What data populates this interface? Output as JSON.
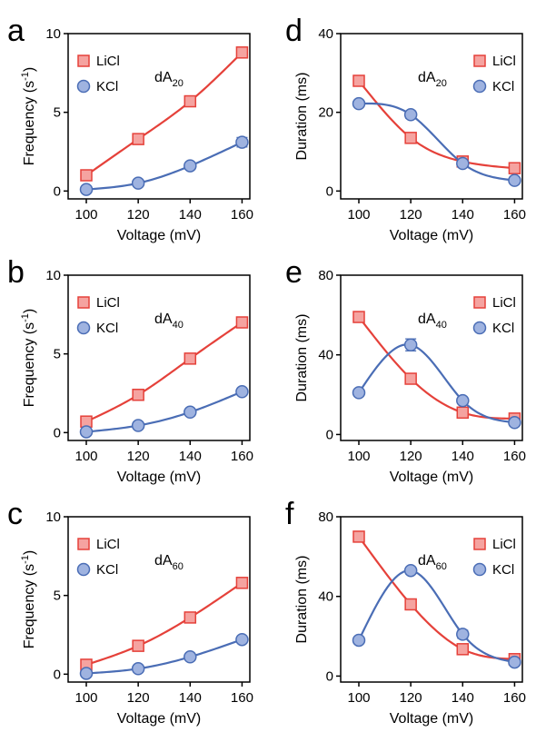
{
  "figure": {
    "panels": [
      "a",
      "b",
      "c",
      "d",
      "e",
      "f"
    ],
    "colors": {
      "LiCl": "#e5413a",
      "KCl": "#4a6db5",
      "LiCl_fill": "#f5a3a0",
      "KCl_fill": "#9fb3e0"
    }
  },
  "chart_data": [
    {
      "panel": "a",
      "type": "line",
      "annotation": {
        "base": "dA",
        "sub": "20"
      },
      "xlabel": "Voltage (mV)",
      "ylabel": "Frequency (s",
      "ylabel_sup": "-1",
      "ylabel_end": ")",
      "x": [
        100,
        120,
        140,
        160
      ],
      "xlim": [
        93,
        163
      ],
      "ylim": [
        -0.5,
        10
      ],
      "xticks": [
        100,
        120,
        140,
        160
      ],
      "yticks": [
        0,
        5,
        10
      ],
      "legend": "top-left",
      "series": [
        {
          "name": "LiCl",
          "values": [
            1.0,
            3.3,
            5.7,
            8.8
          ],
          "errors": [
            0.2,
            0.2,
            0.2,
            0.2
          ]
        },
        {
          "name": "KCl",
          "values": [
            0.1,
            0.5,
            1.6,
            3.1
          ],
          "errors": [
            0.1,
            0.1,
            0.2,
            0.3
          ]
        }
      ]
    },
    {
      "panel": "b",
      "type": "line",
      "annotation": {
        "base": "dA",
        "sub": "40"
      },
      "xlabel": "Voltage (mV)",
      "ylabel": "Frequency (s",
      "ylabel_sup": "-1",
      "ylabel_end": ")",
      "x": [
        100,
        120,
        140,
        160
      ],
      "xlim": [
        93,
        163
      ],
      "ylim": [
        -0.5,
        10
      ],
      "xticks": [
        100,
        120,
        140,
        160
      ],
      "yticks": [
        0,
        5,
        10
      ],
      "legend": "top-left",
      "series": [
        {
          "name": "LiCl",
          "values": [
            0.7,
            2.4,
            4.7,
            7.0
          ],
          "errors": [
            0.2,
            0.3,
            0.2,
            0.2
          ]
        },
        {
          "name": "KCl",
          "values": [
            0.05,
            0.45,
            1.3,
            2.6
          ],
          "errors": [
            0.05,
            0.1,
            0.1,
            0.15
          ]
        }
      ]
    },
    {
      "panel": "c",
      "type": "line",
      "annotation": {
        "base": "dA",
        "sub": "60"
      },
      "xlabel": "Voltage (mV)",
      "ylabel": "Frequency (s",
      "ylabel_sup": "-1",
      "ylabel_end": ")",
      "x": [
        100,
        120,
        140,
        160
      ],
      "xlim": [
        93,
        163
      ],
      "ylim": [
        -0.5,
        10
      ],
      "xticks": [
        100,
        120,
        140,
        160
      ],
      "yticks": [
        0,
        5,
        10
      ],
      "legend": "top-left",
      "series": [
        {
          "name": "LiCl",
          "values": [
            0.6,
            1.8,
            3.6,
            5.8
          ],
          "errors": [
            0.2,
            0.2,
            0.3,
            0.3
          ]
        },
        {
          "name": "KCl",
          "values": [
            0.05,
            0.35,
            1.1,
            2.2
          ],
          "errors": [
            0.05,
            0.1,
            0.15,
            0.2
          ]
        }
      ]
    },
    {
      "panel": "d",
      "type": "line",
      "annotation": {
        "base": "dA",
        "sub": "20"
      },
      "xlabel": "Voltage (mV)",
      "ylabel": "Duration (ms)",
      "x": [
        100,
        120,
        140,
        160
      ],
      "xlim": [
        93,
        163
      ],
      "ylim": [
        -2,
        40
      ],
      "xticks": [
        100,
        120,
        140,
        160
      ],
      "yticks": [
        0,
        20,
        40
      ],
      "legend": "top-right",
      "series": [
        {
          "name": "LiCl",
          "values": [
            28,
            13.5,
            7.5,
            5.8
          ],
          "errors": [
            1.0,
            0.8,
            0.6,
            0.8
          ]
        },
        {
          "name": "KCl",
          "values": [
            22.2,
            19.4,
            7.0,
            2.7
          ],
          "errors": [
            0.8,
            0.9,
            0.5,
            0.4
          ]
        }
      ]
    },
    {
      "panel": "e",
      "type": "line",
      "annotation": {
        "base": "dA",
        "sub": "40"
      },
      "xlabel": "Voltage (mV)",
      "ylabel": "Duration (ms)",
      "x": [
        100,
        120,
        140,
        160
      ],
      "xlim": [
        93,
        163
      ],
      "ylim": [
        -3,
        80
      ],
      "xticks": [
        100,
        120,
        140,
        160
      ],
      "yticks": [
        0,
        40,
        80
      ],
      "legend": "top-right",
      "series": [
        {
          "name": "LiCl",
          "values": [
            59,
            28,
            11,
            8
          ],
          "errors": [
            1.5,
            1.5,
            1.0,
            1.0
          ]
        },
        {
          "name": "KCl",
          "values": [
            21,
            45,
            17,
            6
          ],
          "errors": [
            1.0,
            3.0,
            1.0,
            0.8
          ]
        }
      ]
    },
    {
      "panel": "f",
      "type": "line",
      "annotation": {
        "base": "dA",
        "sub": "60"
      },
      "xlabel": "Voltage (mV)",
      "ylabel": "Duration (ms)",
      "x": [
        100,
        120,
        140,
        160
      ],
      "xlim": [
        93,
        163
      ],
      "ylim": [
        -3,
        80
      ],
      "xticks": [
        100,
        120,
        140,
        160
      ],
      "yticks": [
        0,
        40,
        80
      ],
      "legend": "top-right",
      "series": [
        {
          "name": "LiCl",
          "values": [
            70,
            36,
            13.5,
            8.5
          ],
          "errors": [
            1.5,
            1.5,
            1.0,
            1.0
          ]
        },
        {
          "name": "KCl",
          "values": [
            18,
            53,
            21,
            7
          ],
          "errors": [
            1.0,
            1.5,
            2.0,
            1.0
          ]
        }
      ]
    }
  ]
}
